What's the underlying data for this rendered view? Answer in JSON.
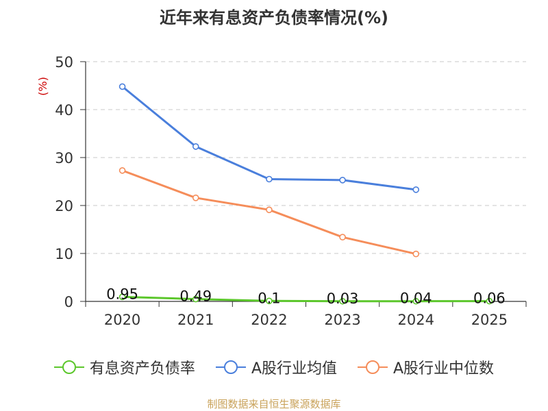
{
  "chart_data": {
    "type": "line",
    "title": "近年来有息资产负债率情况(%)",
    "ylabel": "(%)",
    "xlabel": "",
    "categories": [
      "2020",
      "2021",
      "2022",
      "2023",
      "2024",
      "2025"
    ],
    "ylim": [
      0,
      50
    ],
    "yticks": [
      0,
      10,
      20,
      30,
      40,
      50
    ],
    "grid": true,
    "legend_position": "bottom",
    "series": [
      {
        "name": "有息资产负债率",
        "color": "#5cc72c",
        "values": [
          0.95,
          0.49,
          0.1,
          0.03,
          0.04,
          0.06
        ],
        "labels": [
          "0.95",
          "0.49",
          "0.1",
          "0.03",
          "0.04",
          "0.06"
        ]
      },
      {
        "name": "A股行业均值",
        "color": "#4a7fdc",
        "values": [
          44.8,
          32.3,
          25.5,
          25.3,
          23.3,
          null
        ]
      },
      {
        "name": "A股行业中位数",
        "color": "#f58d5a",
        "values": [
          27.3,
          21.6,
          19.1,
          13.4,
          9.9,
          null
        ]
      }
    ]
  },
  "source": "制图数据来自恒生聚源数据库"
}
